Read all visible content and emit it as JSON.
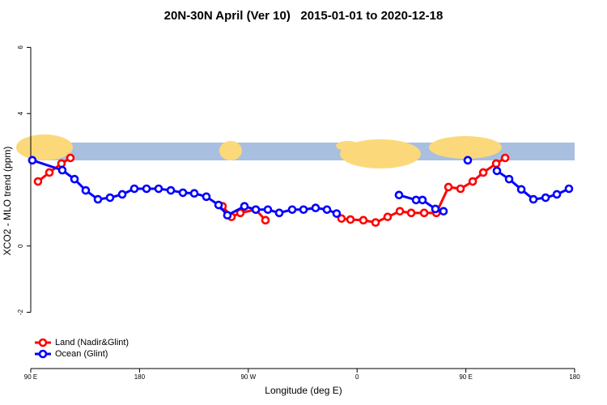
{
  "chart_data": {
    "type": "line",
    "title": "20N-30N April (Ver 10)   2015-01-01 to 2020-12-18",
    "x_label": "Longitude (deg E)",
    "y_label": "XCO2 - MLO trend (ppm)",
    "xlim": [
      90,
      540
    ],
    "ylim": [
      -3.7,
      6.5
    ],
    "xticks": [
      {
        "value": 90,
        "label": "90 E"
      },
      180,
      {
        "value": 270,
        "label": "90 W"
      },
      {
        "value": 360,
        "label": "0"
      },
      {
        "value": 450,
        "label": "90 E"
      },
      {
        "value": 540,
        "label": "180"
      }
    ],
    "yticks": [
      -2,
      0,
      4,
      6
    ],
    "legend": "bottom-left",
    "series": [
      {
        "name": "Land (Nadir&Glint)",
        "color": "#ff0000",
        "x": [
          96,
          105.4,
          115.4,
          122.8,
          null,
          248.7,
          256.1,
          263.4,
          276.2,
          284.2,
          null,
          347.1,
          354.5,
          365.2,
          375.3,
          385.3,
          395.4,
          404.8,
          415.5,
          425.6,
          435.6,
          445.6,
          455.7,
          464.4,
          475.1,
          482.5
        ],
        "values": [
          1.95,
          2.22,
          2.49,
          2.66,
          null,
          1.2,
          0.88,
          1.0,
          1.1,
          0.78,
          null,
          0.83,
          0.8,
          0.78,
          0.71,
          0.88,
          1.05,
          1.0,
          1.0,
          1.0,
          1.78,
          1.73,
          1.95,
          2.22,
          2.49,
          2.66
        ]
      },
      {
        "name": "Ocean (Glint)",
        "color": "#0000ff",
        "x": [
          91.3,
          116.1,
          126.2,
          135.5,
          145.6,
          155.6,
          165.7,
          175.7,
          185.8,
          195.8,
          205.9,
          215.9,
          225.3,
          235.3,
          245.4,
          252.7,
          266.8,
          276.2,
          286.2,
          295.6,
          306.3,
          315.7,
          325.7,
          335.1,
          343.1,
          null,
          394.7,
          408.8,
          414.1,
          424.8,
          431.5,
          null,
          451.6,
          null,
          475.7,
          485.8,
          495.9,
          505.9,
          516,
          525.3,
          535.3
        ],
        "values": [
          2.59,
          2.29,
          2.02,
          1.68,
          1.41,
          1.46,
          1.56,
          1.73,
          1.73,
          1.73,
          1.68,
          1.61,
          1.59,
          1.49,
          1.24,
          0.93,
          1.2,
          1.1,
          1.1,
          1.0,
          1.1,
          1.1,
          1.15,
          1.1,
          0.98,
          null,
          1.54,
          1.39,
          1.39,
          1.12,
          1.05,
          null,
          2.59,
          null,
          2.27,
          2.02,
          1.71,
          1.41,
          1.46,
          1.56,
          1.73
        ]
      }
    ]
  }
}
